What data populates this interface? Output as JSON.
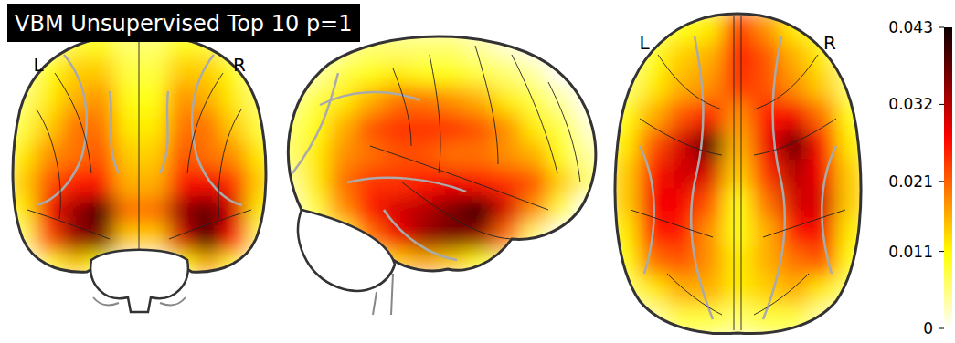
{
  "chart_data": {
    "type": "glass_brain",
    "title": "VBM Unsupervised Top 10 p=1",
    "views": [
      {
        "labels": [
          "L",
          "R"
        ],
        "cells": [
          [
            0,
            0.004,
            0.008,
            0.01,
            0.006,
            0.006,
            0.01,
            0.008,
            0.004,
            0
          ],
          [
            0.004,
            0.01,
            0.014,
            0.014,
            0.008,
            0.008,
            0.014,
            0.014,
            0.01,
            0.004
          ],
          [
            0.006,
            0.012,
            0.016,
            0.018,
            0.01,
            0.01,
            0.018,
            0.016,
            0.012,
            0.006
          ],
          [
            0.008,
            0.014,
            0.02,
            0.02,
            0.012,
            0.012,
            0.02,
            0.02,
            0.014,
            0.008
          ],
          [
            0.012,
            0.018,
            0.02,
            0.022,
            0.014,
            0.014,
            0.022,
            0.02,
            0.018,
            0.012
          ],
          [
            0.014,
            0.022,
            0.026,
            0.026,
            0.016,
            0.016,
            0.026,
            0.028,
            0.024,
            0.014
          ],
          [
            0.012,
            0.028,
            0.034,
            0.04,
            0.02,
            0.02,
            0.034,
            0.038,
            0.03,
            0.012
          ],
          [
            0.006,
            0.022,
            0.034,
            0.036,
            0.014,
            0.014,
            0.03,
            0.04,
            0.026,
            0.006
          ],
          [
            0,
            0.008,
            0.014,
            0.01,
            0,
            0,
            0.01,
            0.016,
            0.008,
            0
          ],
          [
            0,
            0,
            0,
            0,
            0,
            0,
            0,
            0,
            0,
            0
          ]
        ]
      },
      {
        "cells": [
          [
            0,
            0,
            0.004,
            0.006,
            0.006,
            0.006,
            0.006,
            0.004,
            0.002,
            0,
            0,
            0
          ],
          [
            0,
            0.004,
            0.008,
            0.01,
            0.012,
            0.01,
            0.01,
            0.008,
            0.006,
            0.004,
            0,
            0
          ],
          [
            0.004,
            0.008,
            0.012,
            0.016,
            0.02,
            0.02,
            0.018,
            0.016,
            0.012,
            0.008,
            0.004,
            0
          ],
          [
            0.006,
            0.01,
            0.016,
            0.022,
            0.024,
            0.024,
            0.024,
            0.022,
            0.018,
            0.012,
            0.008,
            0.002
          ],
          [
            0.006,
            0.012,
            0.018,
            0.02,
            0.022,
            0.022,
            0.02,
            0.02,
            0.018,
            0.016,
            0.01,
            0.004
          ],
          [
            0.004,
            0.012,
            0.02,
            0.024,
            0.024,
            0.026,
            0.028,
            0.026,
            0.024,
            0.022,
            0.014,
            0.006
          ],
          [
            0.002,
            0.008,
            0.018,
            0.026,
            0.03,
            0.032,
            0.036,
            0.042,
            0.03,
            0.018,
            0.008,
            0
          ],
          [
            0,
            0.004,
            0.008,
            0.02,
            0.028,
            0.034,
            0.036,
            0.034,
            0.02,
            0.006,
            0,
            0
          ],
          [
            0,
            0,
            0.002,
            0.006,
            0.014,
            0.016,
            0.014,
            0.01,
            0.004,
            0,
            0,
            0
          ],
          [
            0,
            0,
            0,
            0,
            0,
            0,
            0,
            0,
            0,
            0,
            0,
            0
          ]
        ]
      },
      {
        "labels": [
          "L",
          "R"
        ],
        "cells": [
          [
            0,
            0.006,
            0.01,
            0.012,
            0.024,
            0.018,
            0.012,
            0.008,
            0
          ],
          [
            0.004,
            0.01,
            0.014,
            0.016,
            0.026,
            0.022,
            0.016,
            0.012,
            0.004
          ],
          [
            0.006,
            0.012,
            0.016,
            0.018,
            0.024,
            0.022,
            0.018,
            0.014,
            0.006
          ],
          [
            0.01,
            0.016,
            0.022,
            0.026,
            0.018,
            0.026,
            0.028,
            0.02,
            0.01
          ],
          [
            0.012,
            0.022,
            0.03,
            0.04,
            0.016,
            0.028,
            0.038,
            0.026,
            0.012
          ],
          [
            0.014,
            0.026,
            0.03,
            0.03,
            0.014,
            0.024,
            0.032,
            0.028,
            0.014
          ],
          [
            0.014,
            0.028,
            0.028,
            0.022,
            0.01,
            0.02,
            0.03,
            0.03,
            0.014
          ],
          [
            0.012,
            0.026,
            0.026,
            0.018,
            0.01,
            0.016,
            0.026,
            0.028,
            0.012
          ],
          [
            0.01,
            0.02,
            0.022,
            0.018,
            0.012,
            0.016,
            0.02,
            0.022,
            0.01
          ],
          [
            0.006,
            0.012,
            0.016,
            0.016,
            0.012,
            0.014,
            0.016,
            0.012,
            0.006
          ],
          [
            0,
            0.004,
            0.008,
            0.008,
            0.006,
            0.008,
            0.008,
            0.004,
            0
          ]
        ]
      }
    ],
    "colorbar": {
      "range": [
        0,
        0.043
      ],
      "ticks": [
        0,
        0.011,
        0.021,
        0.032,
        0.043
      ]
    }
  }
}
